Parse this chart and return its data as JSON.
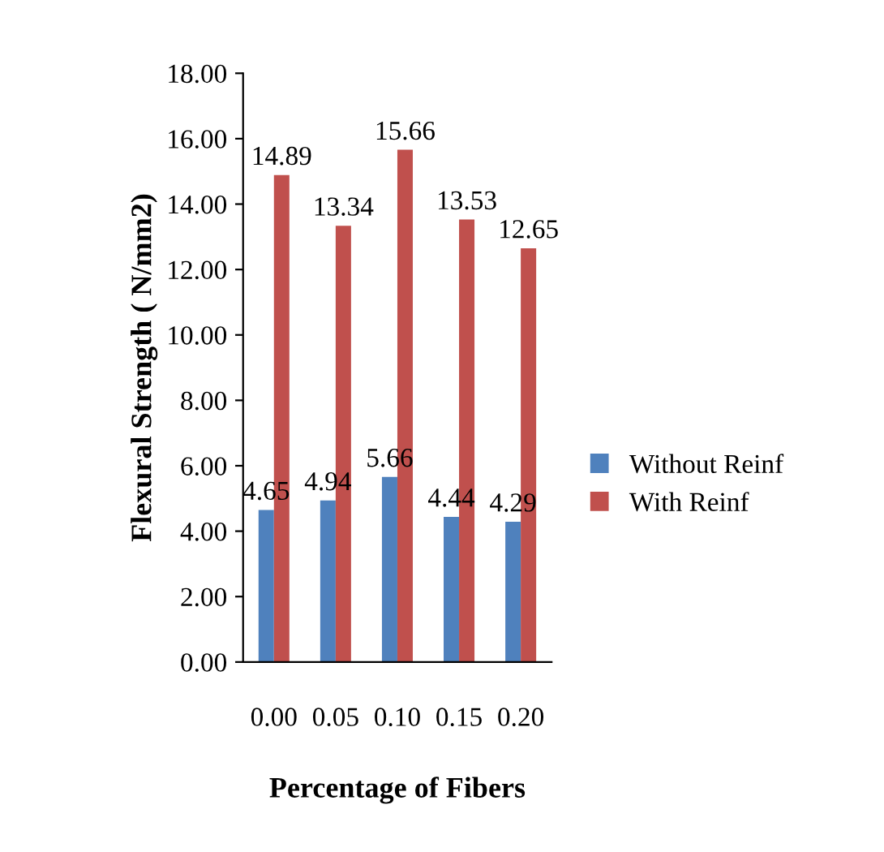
{
  "chart_data": {
    "type": "bar",
    "xlabel": "Percentage of Fibers",
    "ylabel": "Flexural Strength ( N/mm2)",
    "categories": [
      "0.00",
      "0.05",
      "0.10",
      "0.15",
      "0.20"
    ],
    "series": [
      {
        "name": "Without Reinf",
        "color": "#4f81bd",
        "values": [
          4.65,
          4.94,
          5.66,
          4.44,
          4.29
        ]
      },
      {
        "name": "With Reinf",
        "color": "#c0504d",
        "values": [
          14.89,
          13.34,
          15.66,
          13.53,
          12.65
        ]
      }
    ],
    "ylim": [
      0,
      18
    ],
    "yticks": [
      {
        "value": 0,
        "label": "0.00"
      },
      {
        "value": 2,
        "label": "2.00"
      },
      {
        "value": 4,
        "label": "4.00"
      },
      {
        "value": 6,
        "label": "6.00"
      },
      {
        "value": 8,
        "label": "8.00"
      },
      {
        "value": 10,
        "label": "10.00"
      },
      {
        "value": 12,
        "label": "12.00"
      },
      {
        "value": 14,
        "label": "14.00"
      },
      {
        "value": 16,
        "label": "16.00"
      },
      {
        "value": 18,
        "label": "18.00"
      }
    ],
    "data_labels": true,
    "legend": "right",
    "grid": false
  }
}
